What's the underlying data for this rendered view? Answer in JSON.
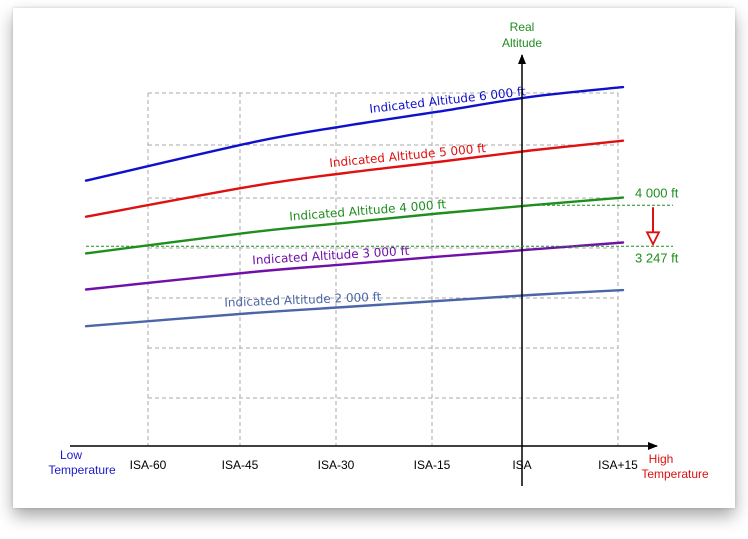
{
  "chart_data": {
    "type": "line",
    "title": "",
    "x_axis": {
      "categories": [
        "ISA-60",
        "ISA-45",
        "ISA-30",
        "ISA-15",
        "ISA",
        "ISA+15"
      ],
      "low_label_line1": "Low",
      "low_label_line2": "Temperature",
      "high_label_line1": "High",
      "high_label_line2": "Temperature"
    },
    "y_axis": {
      "title_line1": "Real",
      "title_line2": "Altitude"
    },
    "grid": "dashed",
    "series": [
      {
        "name": "Indicated Altitude 6 000 ft",
        "color": "#1010cc",
        "x": [
          -72,
          -45,
          -30,
          -15,
          0,
          15
        ],
        "y": [
          4850,
          5550,
          5850,
          6110,
          6380,
          6560
        ]
      },
      {
        "name": "Indicated Altitude 5 000 ft",
        "color": "#e01010",
        "x": [
          -72,
          -45,
          -30,
          -15,
          0,
          15
        ],
        "y": [
          4190,
          4750,
          4990,
          5190,
          5400,
          5580
        ]
      },
      {
        "name": "Indicated Altitude 4 000 ft",
        "color": "#1e8e1e",
        "x": [
          -72,
          -45,
          -30,
          -15,
          0,
          15
        ],
        "y": [
          3520,
          3910,
          4080,
          4250,
          4400,
          4540
        ]
      },
      {
        "name": "Indicated Altitude 3 000 ft",
        "color": "#7010a8",
        "x": [
          -72,
          -45,
          -30,
          -15,
          0,
          15
        ],
        "y": [
          2860,
          3180,
          3320,
          3460,
          3590,
          3720
        ]
      },
      {
        "name": "Indicated Altitude 2 000 ft",
        "color": "#4a66a8",
        "x": [
          -72,
          -45,
          -30,
          -15,
          0,
          15
        ],
        "y": [
          2190,
          2430,
          2540,
          2650,
          2760,
          2850
        ]
      }
    ],
    "annotations": {
      "upper_value": "4 000 ft",
      "lower_value": "3 247 ft",
      "upper_level": 4400,
      "lower_level": 3650,
      "callout_color": "#1e8e1e",
      "arrow_color": "#e01010"
    }
  }
}
